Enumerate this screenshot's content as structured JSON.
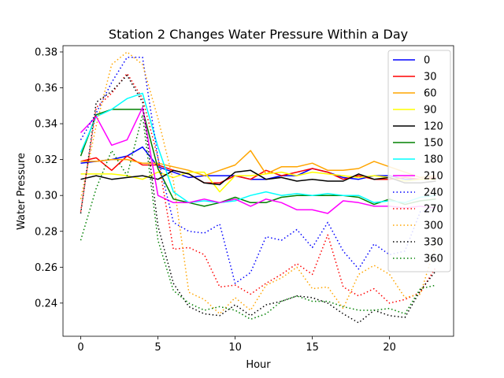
{
  "chart_data": {
    "type": "line",
    "title": "Station 2 Changes Water Pressure Within a Day",
    "xlabel": "Hour",
    "ylabel": "Water Pressure",
    "xlim": [
      -1.15,
      24.15
    ],
    "ylim": [
      0.2215,
      0.3835
    ],
    "xticks": [
      0,
      5,
      10,
      15,
      20
    ],
    "yticks": [
      0.24,
      0.26,
      0.28,
      0.3,
      0.32,
      0.34,
      0.36,
      0.38
    ],
    "grid": false,
    "legend_position": "upper right",
    "x": [
      0,
      1,
      2,
      3,
      4,
      5,
      6,
      7,
      8,
      9,
      10,
      11,
      12,
      13,
      14,
      15,
      16,
      17,
      18,
      19,
      20,
      21,
      22,
      23
    ],
    "series": [
      {
        "name": "0",
        "color": "#0000ff",
        "dash": "solid",
        "values": [
          0.318,
          0.319,
          0.32,
          0.322,
          0.327,
          0.316,
          0.313,
          0.31,
          0.311,
          0.311,
          0.311,
          0.309,
          0.309,
          0.311,
          0.311,
          0.315,
          0.313,
          0.31,
          0.309,
          0.311,
          0.311,
          0.309,
          0.309,
          0.309
        ]
      },
      {
        "name": "30",
        "color": "#ff0000",
        "dash": "solid",
        "values": [
          0.319,
          0.321,
          0.314,
          0.322,
          0.317,
          0.317,
          0.314,
          0.312,
          0.307,
          0.307,
          0.311,
          0.309,
          0.314,
          0.311,
          0.313,
          0.315,
          0.313,
          0.309,
          0.311,
          0.309,
          0.309,
          0.31,
          0.309,
          0.31
        ]
      },
      {
        "name": "60",
        "color": "#ffa500",
        "dash": "solid",
        "values": [
          0.319,
          0.319,
          0.32,
          0.32,
          0.318,
          0.318,
          0.316,
          0.314,
          0.311,
          0.314,
          0.317,
          0.325,
          0.312,
          0.316,
          0.316,
          0.318,
          0.314,
          0.314,
          0.315,
          0.319,
          0.316,
          0.313,
          0.31,
          0.311
        ]
      },
      {
        "name": "90",
        "color": "#ffff00",
        "dash": "solid",
        "values": [
          0.312,
          0.312,
          0.312,
          0.311,
          0.309,
          0.313,
          0.31,
          0.313,
          0.313,
          0.302,
          0.311,
          0.311,
          0.312,
          0.313,
          0.311,
          0.313,
          0.312,
          0.311,
          0.31,
          0.311,
          0.31,
          0.308,
          0.309,
          0.309
        ]
      },
      {
        "name": "120",
        "color": "#000000",
        "dash": "solid",
        "values": [
          0.309,
          0.311,
          0.309,
          0.31,
          0.311,
          0.309,
          0.314,
          0.312,
          0.307,
          0.306,
          0.313,
          0.314,
          0.309,
          0.31,
          0.308,
          0.309,
          0.308,
          0.308,
          0.312,
          0.309,
          0.31,
          0.307,
          0.307,
          0.308
        ]
      },
      {
        "name": "150",
        "color": "#008000",
        "dash": "solid",
        "values": [
          0.322,
          0.345,
          0.348,
          0.348,
          0.348,
          0.315,
          0.298,
          0.296,
          0.294,
          0.296,
          0.299,
          0.296,
          0.296,
          0.299,
          0.3,
          0.3,
          0.3,
          0.3,
          0.299,
          0.295,
          0.298,
          0.295,
          0.297,
          0.298
        ]
      },
      {
        "name": "180",
        "color": "#00ffff",
        "dash": "solid",
        "values": [
          0.324,
          0.344,
          0.348,
          0.354,
          0.357,
          0.327,
          0.302,
          0.296,
          0.297,
          0.296,
          0.297,
          0.3,
          0.302,
          0.3,
          0.301,
          0.3,
          0.301,
          0.3,
          0.3,
          0.296,
          0.297,
          0.296,
          0.299,
          0.3
        ]
      },
      {
        "name": "210",
        "color": "#ff00ff",
        "dash": "solid",
        "values": [
          0.335,
          0.344,
          0.328,
          0.331,
          0.349,
          0.3,
          0.296,
          0.296,
          0.298,
          0.296,
          0.298,
          0.294,
          0.298,
          0.296,
          0.292,
          0.292,
          0.29,
          0.297,
          0.296,
          0.294,
          0.294,
          0.293,
          0.294,
          0.293
        ]
      },
      {
        "name": "240",
        "color": "#0000ff",
        "dash": "dotted",
        "values": [
          0.331,
          0.346,
          0.363,
          0.377,
          0.377,
          0.321,
          0.285,
          0.28,
          0.279,
          0.284,
          0.251,
          0.257,
          0.277,
          0.275,
          0.281,
          0.271,
          0.285,
          0.269,
          0.259,
          0.273,
          0.267,
          0.269,
          0.291,
          0.292
        ]
      },
      {
        "name": "270",
        "color": "#ff0000",
        "dash": "dotted",
        "values": [
          0.291,
          0.349,
          0.357,
          0.368,
          0.354,
          0.321,
          0.27,
          0.271,
          0.267,
          0.249,
          0.25,
          0.245,
          0.251,
          0.256,
          0.262,
          0.256,
          0.278,
          0.249,
          0.244,
          0.248,
          0.24,
          0.242,
          0.246,
          0.26
        ]
      },
      {
        "name": "300",
        "color": "#ffa500",
        "dash": "dotted",
        "values": [
          0.298,
          0.339,
          0.373,
          0.38,
          0.373,
          0.343,
          0.308,
          0.246,
          0.242,
          0.234,
          0.243,
          0.236,
          0.25,
          0.254,
          0.26,
          0.248,
          0.249,
          0.237,
          0.256,
          0.261,
          0.256,
          0.243,
          0.245,
          0.273
        ]
      },
      {
        "name": "330",
        "color": "#000000",
        "dash": "dotted",
        "values": [
          0.29,
          0.352,
          0.358,
          0.367,
          0.352,
          0.283,
          0.251,
          0.238,
          0.234,
          0.233,
          0.239,
          0.233,
          0.239,
          0.241,
          0.244,
          0.243,
          0.24,
          0.234,
          0.229,
          0.236,
          0.233,
          0.232,
          0.247,
          0.258
        ]
      },
      {
        "name": "360",
        "color": "#008000",
        "dash": "dotted",
        "values": [
          0.275,
          0.304,
          0.325,
          0.311,
          0.345,
          0.275,
          0.247,
          0.24,
          0.236,
          0.238,
          0.236,
          0.231,
          0.234,
          0.241,
          0.244,
          0.241,
          0.241,
          0.238,
          0.236,
          0.236,
          0.237,
          0.234,
          0.248,
          0.25
        ]
      }
    ]
  }
}
